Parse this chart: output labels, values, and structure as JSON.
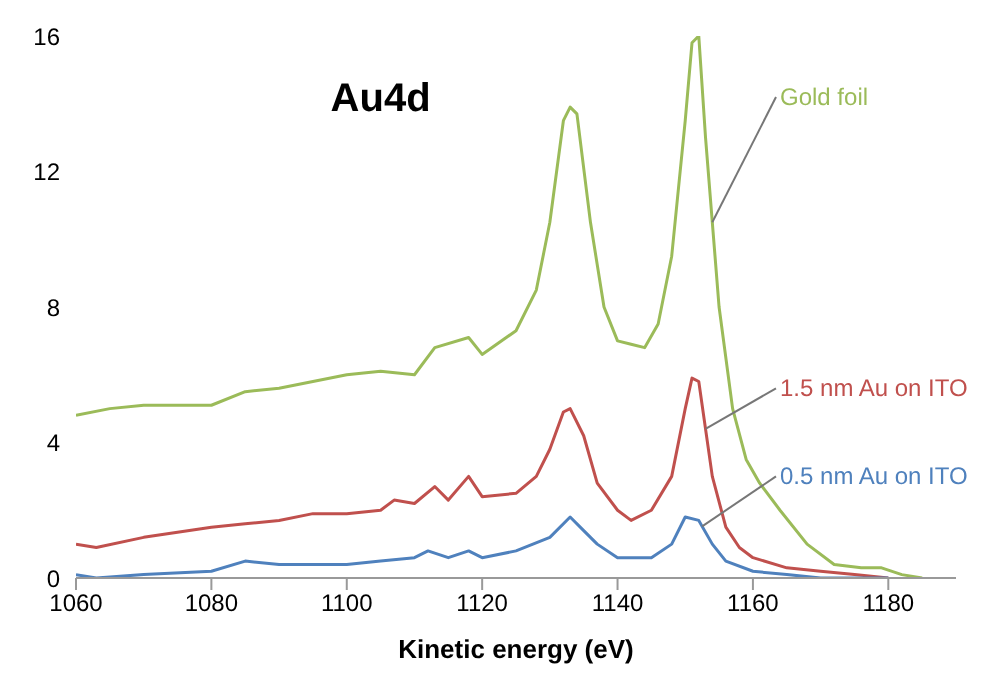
{
  "chart_data": {
    "type": "line",
    "title": "Au4d",
    "xlabel": "Kinetic energy (eV)",
    "xlim": [
      1060,
      1190
    ],
    "xticks": [
      1060,
      1080,
      1100,
      1120,
      1140,
      1160,
      1180
    ],
    "ylim": [
      0,
      16
    ],
    "yticks": [
      0,
      4,
      8,
      12,
      16
    ],
    "grid": false,
    "series": [
      {
        "name": "Gold foil",
        "color": "#9bbb59",
        "x": [
          1060,
          1065,
          1070,
          1080,
          1085,
          1090,
          1095,
          1100,
          1105,
          1110,
          1113,
          1118,
          1120,
          1125,
          1128,
          1130,
          1132,
          1133,
          1134,
          1136,
          1138,
          1140,
          1142,
          1144,
          1146,
          1148,
          1150,
          1151,
          1152,
          1153,
          1155,
          1157,
          1159,
          1161,
          1164,
          1168,
          1172,
          1176,
          1179,
          1182,
          1185
        ],
        "values": [
          4.8,
          5.0,
          5.1,
          5.1,
          5.5,
          5.6,
          5.8,
          6.0,
          6.1,
          6.0,
          6.8,
          7.1,
          6.6,
          7.3,
          8.5,
          10.5,
          13.5,
          13.9,
          13.7,
          10.5,
          8.0,
          7.0,
          6.9,
          6.8,
          7.5,
          9.5,
          13.5,
          15.8,
          16,
          13,
          8,
          5,
          3.5,
          2.8,
          2.0,
          1.0,
          0.4,
          0.3,
          0.3,
          0.1,
          0
        ]
      },
      {
        "name": "1.5 nm Au on ITO",
        "color": "#c0504d",
        "x": [
          1060,
          1063,
          1070,
          1080,
          1085,
          1090,
          1095,
          1100,
          1105,
          1107,
          1110,
          1113,
          1115,
          1118,
          1120,
          1125,
          1128,
          1130,
          1132,
          1133,
          1135,
          1137,
          1140,
          1142,
          1145,
          1148,
          1150,
          1151,
          1152,
          1154,
          1156,
          1158,
          1160,
          1165,
          1170,
          1175,
          1180
        ],
        "values": [
          1.0,
          0.9,
          1.2,
          1.5,
          1.6,
          1.7,
          1.9,
          1.9,
          2.0,
          2.3,
          2.2,
          2.7,
          2.3,
          3.0,
          2.4,
          2.5,
          3.0,
          3.8,
          4.9,
          5.0,
          4.2,
          2.8,
          2.0,
          1.7,
          2.0,
          3.0,
          5.0,
          5.9,
          5.8,
          3.0,
          1.5,
          0.9,
          0.6,
          0.3,
          0.2,
          0.1,
          0
        ]
      },
      {
        "name": "0.5 nm Au on ITO",
        "color": "#4f81bd",
        "x": [
          1060,
          1063,
          1070,
          1080,
          1085,
          1090,
          1100,
          1105,
          1110,
          1112,
          1115,
          1118,
          1120,
          1125,
          1130,
          1133,
          1135,
          1137,
          1140,
          1145,
          1148,
          1150,
          1152,
          1154,
          1156,
          1160,
          1165,
          1170,
          1180
        ],
        "values": [
          0.1,
          0,
          0.1,
          0.2,
          0.5,
          0.4,
          0.4,
          0.5,
          0.6,
          0.8,
          0.6,
          0.8,
          0.6,
          0.8,
          1.2,
          1.8,
          1.4,
          1.0,
          0.6,
          0.6,
          1.0,
          1.8,
          1.7,
          1.0,
          0.5,
          0.2,
          0.1,
          0,
          0
        ]
      }
    ]
  }
}
